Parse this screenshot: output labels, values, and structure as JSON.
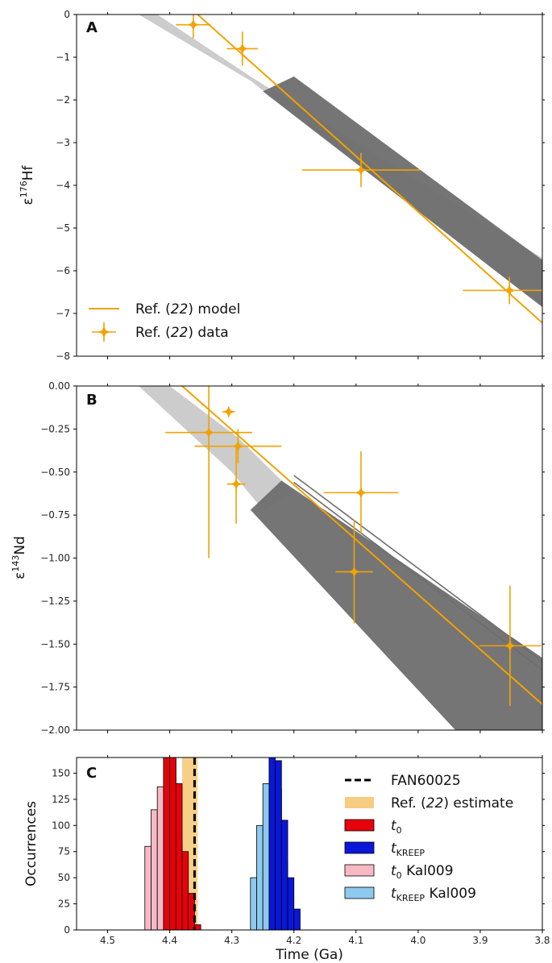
{
  "colors": {
    "model": "#f2a200",
    "band_dark": "#6e6e6e",
    "band_light": "#c3c3c3",
    "band_faint": "#dcdcdc",
    "t0": "#e8000b",
    "tkreep": "#0a17d9",
    "t0_kal": "#f7b9c4",
    "tkreep_kal": "#8ec9ee",
    "estimate": "#f5c36a",
    "fan": "#000000"
  },
  "chart_data": [
    {
      "panel": "A",
      "type": "line",
      "xlim": [
        4.55,
        3.8
      ],
      "ylim": [
        -8,
        0
      ],
      "yticks": [
        0,
        -1,
        -2,
        -3,
        -4,
        -5,
        -6,
        -7,
        -8
      ],
      "ylabel": "ε176Hf",
      "ylabel_base": "ε",
      "ylabel_sup": "176",
      "ylabel_rest": "Hf",
      "model_line": {
        "x": [
          4.355,
          3.8
        ],
        "y": [
          0,
          -7.22
        ]
      },
      "bands": [
        {
          "shade": "light",
          "upper": [
            [
              4.42,
              0
            ],
            [
              4.27,
              -1.45
            ],
            [
              3.8,
              -5.7
            ]
          ],
          "lower": [
            [
              4.45,
              0
            ],
            [
              4.27,
              -1.55
            ],
            [
              3.8,
              -6.85
            ]
          ]
        },
        {
          "shade": "dark",
          "upper": [
            [
              4.2,
              -1.45
            ],
            [
              3.8,
              -5.75
            ]
          ],
          "lower": [
            [
              4.25,
              -1.8
            ],
            [
              3.8,
              -6.85
            ]
          ]
        }
      ],
      "points": [
        {
          "x": 4.362,
          "y": -0.24,
          "xerr": 0.028,
          "yerr": 0.32
        },
        {
          "x": 4.283,
          "y": -0.8,
          "xerr": 0.025,
          "yerr": 0.4
        },
        {
          "x": 4.092,
          "y": -3.64,
          "xerr": 0.095,
          "yerr": 0.4
        },
        {
          "x": 3.853,
          "y": -6.46,
          "xerr": 0.075,
          "yerr": 0.32
        }
      ],
      "legend": {
        "model_label": "Ref. (22) model",
        "data_label": "Ref. (22) data",
        "placement": "lower left"
      }
    },
    {
      "panel": "B",
      "type": "line",
      "xlim": [
        4.55,
        3.8
      ],
      "ylim": [
        -2.0,
        0.0
      ],
      "yticks": [
        "0.00",
        "-0.25",
        "-0.50",
        "-0.75",
        "-1.00",
        "-1.25",
        "-1.50",
        "-1.75",
        "-2.00"
      ],
      "ylabel": "ε143Nd",
      "ylabel_base": "ε",
      "ylabel_sup": "143",
      "ylabel_rest": "Nd",
      "model_line": {
        "x": [
          4.38,
          3.8
        ],
        "y": [
          0,
          -1.85
        ]
      },
      "bands": [
        {
          "shade": "light",
          "upper": [
            [
              4.4,
              0
            ],
            [
              4.29,
              -0.3
            ],
            [
              4.2,
              -0.62
            ]
          ],
          "lower": [
            [
              4.45,
              0
            ],
            [
              4.3,
              -0.5
            ],
            [
              4.25,
              -0.72
            ]
          ]
        },
        {
          "shade": "dark",
          "upper": [
            [
              4.22,
              -0.55
            ],
            [
              3.8,
              -1.58
            ]
          ],
          "lower": [
            [
              4.27,
              -0.72
            ],
            [
              3.94,
              -2.0
            ],
            [
              3.8,
              -2.0
            ]
          ]
        }
      ],
      "thin_lines": [
        {
          "x": [
            4.2,
            3.8
          ],
          "y": [
            -0.52,
            -1.6
          ]
        },
        {
          "x": [
            4.2,
            3.8
          ],
          "y": [
            -0.56,
            -1.65
          ]
        }
      ],
      "points": [
        {
          "x": 4.337,
          "y": -0.27,
          "xerr": 0.07,
          "yerr_up": 0.28,
          "yerr_down": 0.73
        },
        {
          "x": 4.305,
          "y": -0.15,
          "xerr": 0.01,
          "yerr": 0.03
        },
        {
          "x": 4.29,
          "y": -0.35,
          "xerr": 0.07,
          "yerr": 0.1
        },
        {
          "x": 4.293,
          "y": -0.57,
          "xerr": 0.015,
          "yerr": 0.23
        },
        {
          "x": 4.092,
          "y": -0.62,
          "xerr": 0.06,
          "yerr": 0.24
        },
        {
          "x": 4.103,
          "y": -1.08,
          "xerr": 0.03,
          "yerr": 0.3
        },
        {
          "x": 3.852,
          "y": -1.51,
          "xerr": 0.05,
          "yerr": 0.35
        }
      ]
    },
    {
      "panel": "C",
      "type": "bar",
      "xlim": [
        4.55,
        3.8
      ],
      "ylim": [
        0,
        165
      ],
      "xticks": [
        "4.5",
        "4.4",
        "4.3",
        "4.2",
        "4.1",
        "4.0",
        "3.9",
        "3.8"
      ],
      "yticks": [
        0,
        25,
        50,
        75,
        100,
        125,
        150
      ],
      "xlabel": "Time (Ga)",
      "ylabel": "Occurrences",
      "fan60025": 4.36,
      "estimate_range": [
        4.38,
        4.355
      ],
      "bin_width": 0.01,
      "series": [
        {
          "key": "t0_kal",
          "bins": [
            {
              "x": 4.44,
              "v": 80
            },
            {
              "x": 4.43,
              "v": 115
            },
            {
              "x": 4.42,
              "v": 137
            },
            {
              "x": 4.41,
              "v": 175
            },
            {
              "x": 4.4,
              "v": 175
            },
            {
              "x": 4.39,
              "v": 85
            }
          ]
        },
        {
          "key": "t0",
          "bins": [
            {
              "x": 4.41,
              "v": 175
            },
            {
              "x": 4.4,
              "v": 175
            },
            {
              "x": 4.39,
              "v": 140
            },
            {
              "x": 4.38,
              "v": 75
            },
            {
              "x": 4.37,
              "v": 35
            },
            {
              "x": 4.36,
              "v": 5
            }
          ]
        },
        {
          "key": "tkreep_kal",
          "bins": [
            {
              "x": 4.27,
              "v": 50
            },
            {
              "x": 4.26,
              "v": 100
            },
            {
              "x": 4.25,
              "v": 140
            },
            {
              "x": 4.24,
              "v": 175
            },
            {
              "x": 4.23,
              "v": 135
            },
            {
              "x": 4.22,
              "v": 65
            }
          ]
        },
        {
          "key": "tkreep",
          "bins": [
            {
              "x": 4.24,
              "v": 175
            },
            {
              "x": 4.23,
              "v": 162
            },
            {
              "x": 4.22,
              "v": 105
            },
            {
              "x": 4.21,
              "v": 50
            },
            {
              "x": 4.2,
              "v": 20
            }
          ]
        }
      ],
      "legend": {
        "placement": "upper right",
        "fan_label": "FAN60025",
        "estimate_label": "Ref. (22) estimate",
        "t0_label": "t0",
        "tkreep_label": "tKREEP",
        "t0_kal_label": "t0 Kal009",
        "tkreep_kal_label": "tKREEP Kal009"
      }
    }
  ]
}
